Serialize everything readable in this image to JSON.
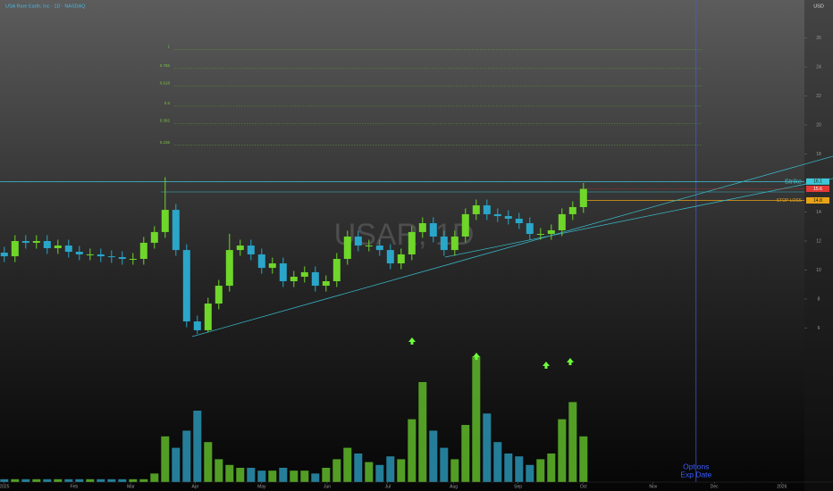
{
  "chart_data": {
    "type": "candlestick",
    "title": "USA Rare Earth, Inc · 1D · NASDAQ",
    "watermark": "USAR, 1D",
    "currency": "USD",
    "colors": {
      "up": "#6fd62a",
      "down": "#2aa6c9",
      "volume_up": "#5fb82a",
      "volume_down": "#2a93b3"
    },
    "x": [
      0,
      1,
      2,
      3,
      4,
      5,
      6,
      7,
      8,
      9,
      10,
      11,
      12,
      13,
      14,
      15,
      16,
      17,
      18,
      19,
      20,
      21,
      22,
      23,
      24,
      25,
      26,
      27,
      28,
      29,
      30,
      31,
      32,
      33,
      34,
      35,
      36,
      37,
      38,
      39,
      40,
      41,
      42,
      43,
      44,
      45,
      46,
      47,
      48,
      49,
      50,
      51,
      52,
      53,
      54
    ],
    "xlim": [
      -0.4,
      74.6
    ],
    "xticks": [
      {
        "value": 0,
        "label": "2025"
      },
      {
        "value": 6.5,
        "label": "Feb"
      },
      {
        "value": 11.8,
        "label": "Mar"
      },
      {
        "value": 17.8,
        "label": "Apr"
      },
      {
        "value": 24,
        "label": "May"
      },
      {
        "value": 30.1,
        "label": "Jun"
      },
      {
        "value": 35.75,
        "label": "Jul"
      },
      {
        "value": 41.9,
        "label": "Aug"
      },
      {
        "value": 47.9,
        "label": "Sep"
      },
      {
        "value": 54,
        "label": "Oct"
      },
      {
        "value": 60.5,
        "label": "Nov"
      },
      {
        "value": 66.2,
        "label": "Dec"
      },
      {
        "value": 72.5,
        "label": "2026"
      }
    ],
    "ylim": [
      4,
      28
    ],
    "yticks": [
      6,
      8,
      10,
      12,
      14,
      16,
      18,
      20,
      22,
      24,
      26
    ],
    "open": [
      11.2,
      10.95,
      12.0,
      11.88,
      12.0,
      11.51,
      11.69,
      11.26,
      11.08,
      11.08,
      10.95,
      10.89,
      10.77,
      10.77,
      11.88,
      12.62,
      14.15,
      11.38,
      6.46,
      5.85,
      7.69,
      8.92,
      11.38,
      11.69,
      11.08,
      10.15,
      10.46,
      9.23,
      9.54,
      9.85,
      8.92,
      9.23,
      10.77,
      12.31,
      11.69,
      11.69,
      11.38,
      10.46,
      11.08,
      12.62,
      13.23,
      12.31,
      11.38,
      12.31,
      13.85,
      14.46,
      13.85,
      13.72,
      13.54,
      13.23,
      12.49,
      12.49,
      12.74,
      13.85,
      14.34
    ],
    "high": [
      11.6,
      12.4,
      12.4,
      12.4,
      12.4,
      12.09,
      12.09,
      11.66,
      11.48,
      11.48,
      11.35,
      11.29,
      11.17,
      12.28,
      13.02,
      16.4,
      14.55,
      11.78,
      6.86,
      8.09,
      9.32,
      12.5,
      12.09,
      12.09,
      11.48,
      10.86,
      10.86,
      9.94,
      10.25,
      10.25,
      9.63,
      11.17,
      12.71,
      12.71,
      12.09,
      12.09,
      11.78,
      11.48,
      13.02,
      13.63,
      13.63,
      12.71,
      12.71,
      14.25,
      14.86,
      14.86,
      14.25,
      14.12,
      13.94,
      13.63,
      12.89,
      13.14,
      14.25,
      14.74,
      16.0
    ],
    "low": [
      10.55,
      10.55,
      11.48,
      11.48,
      11.11,
      11.11,
      10.86,
      10.68,
      10.68,
      10.55,
      10.49,
      10.37,
      10.37,
      10.37,
      11.48,
      12.22,
      10.98,
      6.06,
      5.6,
      5.7,
      7.29,
      8.52,
      10.98,
      10.68,
      9.75,
      9.75,
      8.83,
      8.83,
      9.14,
      8.52,
      8.52,
      8.83,
      10.37,
      11.29,
      11.29,
      10.98,
      10.06,
      10.06,
      10.68,
      12.22,
      11.91,
      10.98,
      10.98,
      11.91,
      13.45,
      13.45,
      13.32,
      13.14,
      12.83,
      12.09,
      12.09,
      12.09,
      12.34,
      13.45,
      13.94
    ],
    "close": [
      10.95,
      12.0,
      11.88,
      12.0,
      11.51,
      11.69,
      11.26,
      11.08,
      11.08,
      10.95,
      10.89,
      10.77,
      10.77,
      11.88,
      12.62,
      14.15,
      11.38,
      6.46,
      5.85,
      7.69,
      8.92,
      11.38,
      11.69,
      11.08,
      10.15,
      10.46,
      9.23,
      9.54,
      9.85,
      8.92,
      9.23,
      10.77,
      12.31,
      11.69,
      11.69,
      11.38,
      10.46,
      11.08,
      12.62,
      13.23,
      12.31,
      11.38,
      12.31,
      13.85,
      14.46,
      13.85,
      13.72,
      13.54,
      13.23,
      12.49,
      12.49,
      12.74,
      13.85,
      14.34,
      15.6
    ],
    "volume": [
      1,
      1,
      1,
      1,
      1,
      1,
      1,
      1,
      1,
      1,
      1,
      1,
      1,
      1,
      3,
      16,
      12,
      18,
      25,
      14,
      8,
      6,
      5,
      5,
      4,
      4,
      5,
      4,
      4,
      3,
      5,
      8,
      12,
      10,
      7,
      6,
      9,
      8,
      22,
      35,
      18,
      12,
      8,
      20,
      44,
      24,
      14,
      10,
      9,
      6,
      8,
      10,
      22,
      28,
      16
    ],
    "y2lim": [
      0,
      50
    ],
    "levels": [
      {
        "name": "Strike",
        "value": 16.1,
        "color": "#3fc6d6"
      },
      {
        "name": "STOP LOSS",
        "value": 14.8,
        "color": "#e8a317"
      }
    ],
    "fib_levels": [
      {
        "label": "1",
        "value": 25.2
      },
      {
        "label": "0.786",
        "value": 23.9
      },
      {
        "label": "0.618",
        "value": 22.7
      },
      {
        "label": "0.5",
        "value": 21.3
      },
      {
        "label": "0.382",
        "value": 20.1
      },
      {
        "label": "0.236",
        "value": 18.6
      }
    ],
    "expiry": {
      "label_lines": [
        "Options",
        "Exp Date"
      ],
      "x": 64.5,
      "color": "#3a5cff"
    }
  }
}
